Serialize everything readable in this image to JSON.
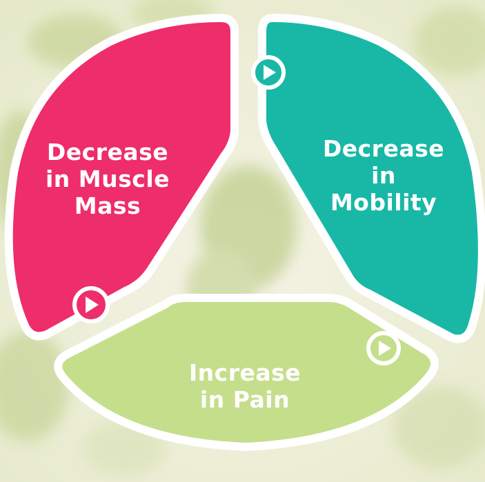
{
  "diagram": {
    "segments": [
      {
        "id": "muscle",
        "lines": [
          "Decrease",
          "in Muscle",
          "Mass"
        ],
        "color": "#EE2D6B"
      },
      {
        "id": "mobility",
        "lines": [
          "Decrease",
          "in",
          "Mobility"
        ],
        "color": "#19B8A6"
      },
      {
        "id": "pain",
        "lines": [
          "Increase",
          "in Pain"
        ],
        "color": "#C5DE8C"
      }
    ],
    "outline_color": "#FFFFFF",
    "background_colors": [
      "#F3F1E2",
      "#E4E8C6",
      "#CFD9A0"
    ]
  }
}
